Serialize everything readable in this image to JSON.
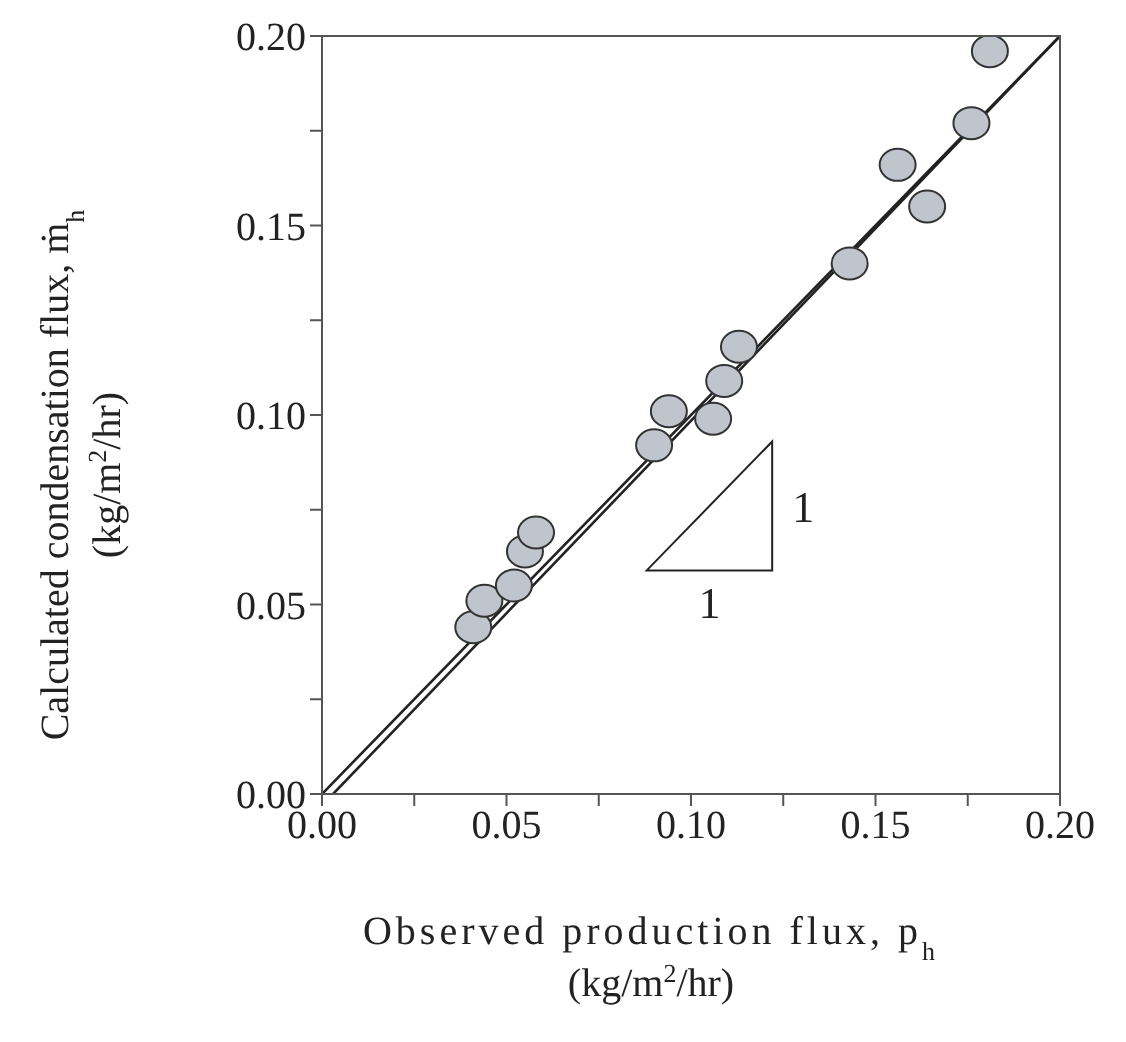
{
  "chart_data": {
    "type": "scatter",
    "xlabel": "Observed production flux, p$_{h}$\n(kg/m$^{2}$/hr)",
    "ylabel": "Calculated condensation flux, ṁ$_{h}$\n(kg/m$^{2}$/hr)",
    "x": [
      0.041,
      0.044,
      0.052,
      0.055,
      0.058,
      0.09,
      0.094,
      0.106,
      0.109,
      0.113,
      0.143,
      0.156,
      0.164,
      0.176,
      0.181
    ],
    "values": [
      0.044,
      0.051,
      0.055,
      0.064,
      0.069,
      0.092,
      0.101,
      0.099,
      0.109,
      0.118,
      0.14,
      0.166,
      0.155,
      0.177,
      0.196
    ],
    "color": "#c0c4cc",
    "marker": "circle",
    "series": [
      {
        "type": "line",
        "color": "#222222",
        "marker": "none",
        "x": [
          0,
          0.2
        ],
        "values": [
          0,
          0.2
        ]
      },
      {
        "type": "line",
        "color": "#222222",
        "marker": "none",
        "x": [
          0.003,
          0.2
        ],
        "values": [
          0,
          0.2
        ]
      }
    ],
    "xlim": [
      0,
      0.2
    ],
    "ylim": [
      0,
      0.2
    ],
    "xticks": [
      {
        "value": 0,
        "label": "0.00"
      },
      {
        "value": 0.025,
        "label": null
      },
      0.05,
      {
        "value": 0.075,
        "label": null
      },
      {
        "value": 0.1,
        "label": "0.10"
      },
      {
        "value": 0.125,
        "label": null
      },
      0.15,
      {
        "value": 0.175,
        "label": null
      },
      {
        "value": 0.2,
        "label": "0.20"
      }
    ],
    "yticks": [
      {
        "value": 0,
        "label": "0.00"
      },
      {
        "value": 0.025,
        "label": null
      },
      0.05,
      {
        "value": 0.075,
        "label": null
      },
      {
        "value": 0.1,
        "label": "0.10"
      },
      {
        "value": 0.125,
        "label": null
      },
      0.15,
      {
        "value": 0.175,
        "label": null
      },
      {
        "value": 0.2,
        "label": "0.20"
      }
    ],
    "annotations": [
      "1",
      "1"
    ],
    "grid": false,
    "legend": false
  }
}
